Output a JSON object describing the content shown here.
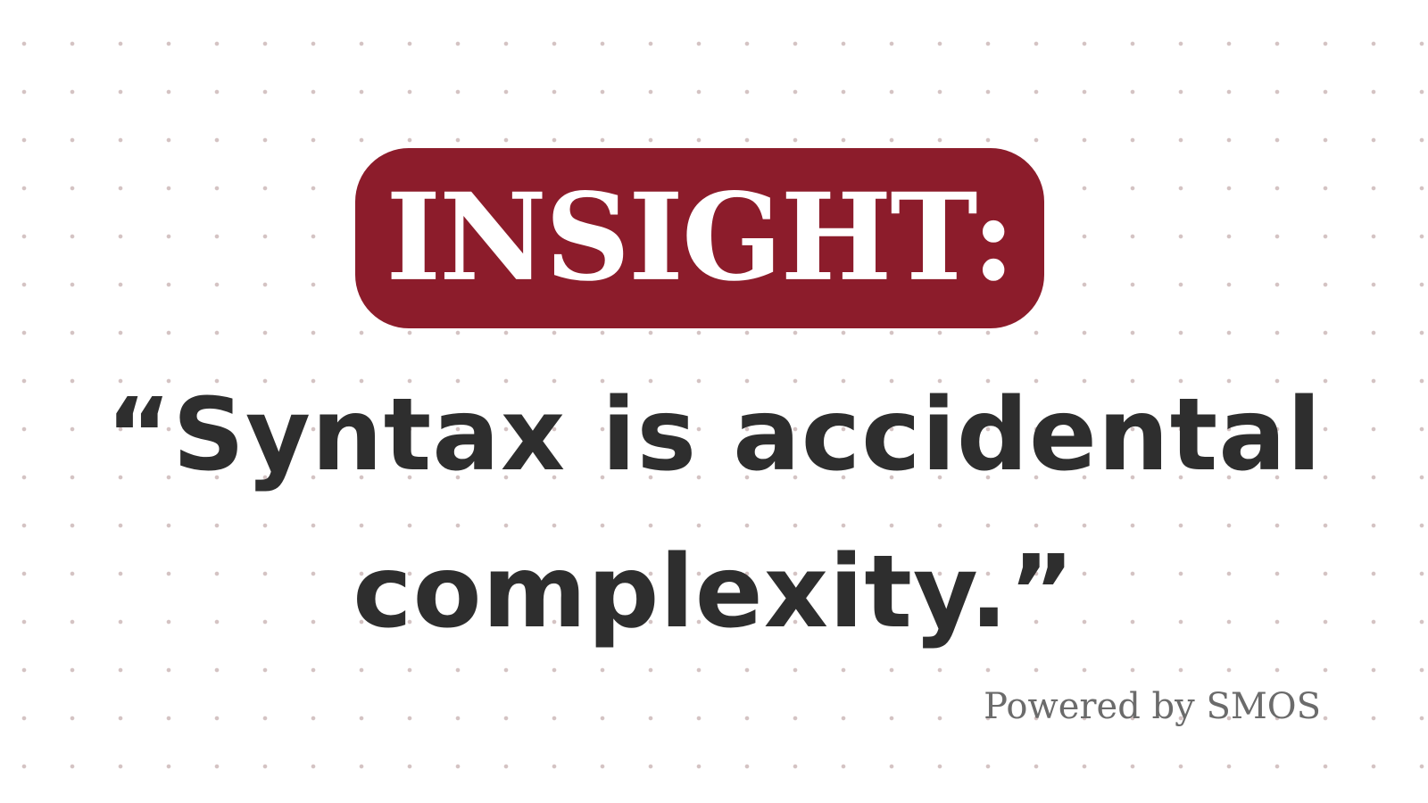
{
  "badge": {
    "label": "INSIGHT:",
    "color": "#8c1c2b"
  },
  "quote": {
    "line1": "“Syntax is accidental",
    "line2": "complexity.”",
    "color": "#2e2e2e"
  },
  "footer": {
    "text": "Powered by SMOS"
  }
}
